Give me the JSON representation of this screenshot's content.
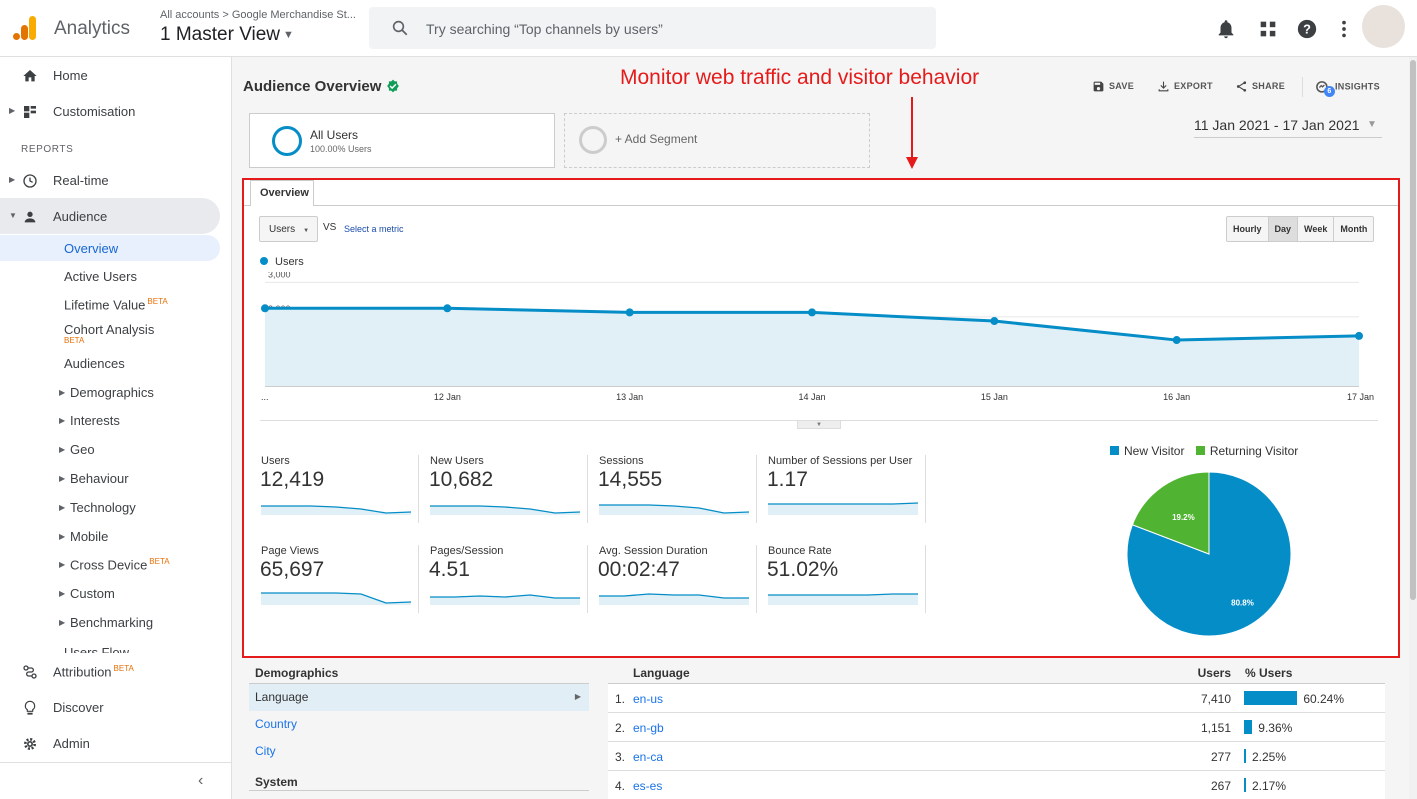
{
  "header": {
    "app_title": "Analytics",
    "account_breadcrumb": "All accounts > Google Merchandise St...",
    "view_name": "1 Master View",
    "search_placeholder": "Try searching “Top channels by users”",
    "icons": [
      "analytics-logo-icon",
      "search-icon",
      "bell-icon",
      "apps-grid-icon",
      "help-icon",
      "more-vert-icon"
    ]
  },
  "sidebar": {
    "home": "Home",
    "customisation": "Customisation",
    "reports_header": "REPORTS",
    "realtime": "Real-time",
    "audience": "Audience",
    "audience_items": {
      "overview": "Overview",
      "active_users": "Active Users",
      "lifetime_value": "Lifetime Value",
      "cohort_analysis": "Cohort Analysis",
      "audiences": "Audiences",
      "demographics": "Demographics",
      "interests": "Interests",
      "geo": "Geo",
      "behaviour": "Behaviour",
      "technology": "Technology",
      "mobile": "Mobile",
      "cross_device": "Cross Device",
      "custom": "Custom",
      "benchmarking": "Benchmarking",
      "users_flow": "Users Flow"
    },
    "beta_label": "BETA",
    "attribution": "Attribution",
    "discover": "Discover",
    "admin": "Admin",
    "collapse_glyph": "‹"
  },
  "main": {
    "page_title": "Audience Overview",
    "annotation": "Monitor web traffic and visitor behavior",
    "actions": {
      "save": "SAVE",
      "export": "EXPORT",
      "share": "SHARE",
      "insights": "INSIGHTS",
      "insights_badge": "6"
    },
    "segments": {
      "all_users_name": "All Users",
      "all_users_pct": "100.00% Users",
      "add_segment": "+ Add Segment"
    },
    "date_range": "11 Jan 2021 - 17 Jan 2021",
    "overview_tab": "Overview",
    "metric_select": "Users",
    "vs": "VS",
    "select_metric": "Select a metric",
    "granularity": [
      "Hourly",
      "Day",
      "Week",
      "Month"
    ],
    "granularity_selected": "Day",
    "legend_series": "Users",
    "metrics": [
      {
        "label": "Users",
        "value": "12,419"
      },
      {
        "label": "New Users",
        "value": "10,682"
      },
      {
        "label": "Sessions",
        "value": "14,555"
      },
      {
        "label": "Number of Sessions per User",
        "value": "1.17"
      },
      {
        "label": "Page Views",
        "value": "65,697"
      },
      {
        "label": "Pages/Session",
        "value": "4.51"
      },
      {
        "label": "Avg. Session Duration",
        "value": "00:02:47"
      },
      {
        "label": "Bounce Rate",
        "value": "51.02%"
      }
    ],
    "pie_legend": {
      "new_visitor": "New Visitor",
      "returning_visitor": "Returning Visitor"
    },
    "colors": {
      "primary": "#058dc7",
      "returning": "#50b432",
      "annotation_red": "#e51b1b"
    }
  },
  "chart_data": [
    {
      "type": "area",
      "x": [
        "...",
        "12 Jan",
        "13 Jan",
        "14 Jan",
        "15 Jan",
        "16 Jan",
        "17 Jan"
      ],
      "series": [
        {
          "name": "Users",
          "values": [
            2250,
            2250,
            2130,
            2130,
            1880,
            1330,
            1450
          ]
        }
      ],
      "yticks": [
        "3,000",
        "2,000",
        "1,000"
      ],
      "ylim": [
        0,
        3300
      ]
    },
    {
      "type": "pie",
      "labels": [
        "New Visitor",
        "Returning Visitor"
      ],
      "values": [
        80.8,
        19.2
      ],
      "value_labels": [
        "80.8%",
        "19.2%"
      ],
      "colors": [
        "#058dc7",
        "#50b432"
      ]
    }
  ],
  "demographics": {
    "header": "Demographics",
    "items": [
      "Language",
      "Country",
      "City"
    ],
    "system_header": "System"
  },
  "language_table": {
    "header": {
      "language": "Language",
      "users": "Users",
      "pct_users": "% Users"
    },
    "rows": [
      {
        "num": "1.",
        "name": "en-us",
        "users": "7,410",
        "pct": "60.24%",
        "share": 60.24
      },
      {
        "num": "2.",
        "name": "en-gb",
        "users": "1,151",
        "pct": "9.36%",
        "share": 9.36
      },
      {
        "num": "3.",
        "name": "en-ca",
        "users": "277",
        "pct": "2.25%",
        "share": 2.25
      },
      {
        "num": "4.",
        "name": "es-es",
        "users": "267",
        "pct": "2.17%",
        "share": 2.17
      }
    ]
  }
}
